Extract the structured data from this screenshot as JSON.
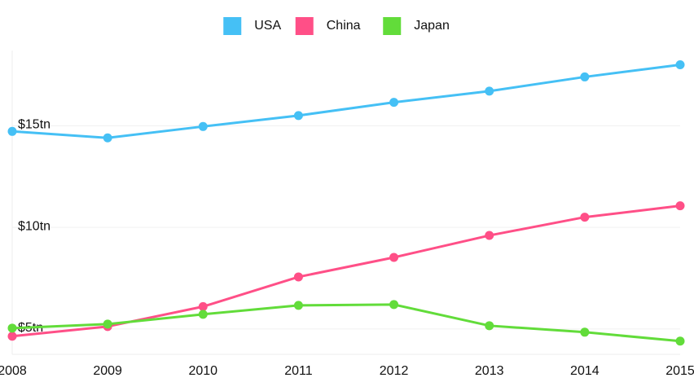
{
  "chart_data": {
    "type": "line",
    "x": [
      2008,
      2009,
      2010,
      2011,
      2012,
      2013,
      2014,
      2015
    ],
    "xlim": [
      2008,
      2015
    ],
    "xticks": [
      2008,
      2009,
      2010,
      2011,
      2012,
      2013,
      2014,
      2015
    ],
    "ylim": [
      3.75,
      18.7
    ],
    "yticks": [
      {
        "value": 5,
        "label": "$5tn"
      },
      {
        "value": 10,
        "label": "$10tn"
      },
      {
        "value": 15,
        "label": "$15tn"
      }
    ],
    "grid": true,
    "legend": "top",
    "series": [
      {
        "name": "USA",
        "color": "#45c0f5",
        "values": [
          14.72,
          14.4,
          14.96,
          15.5,
          16.15,
          16.7,
          17.4,
          18.0
        ]
      },
      {
        "name": "China",
        "color": "#ff4f87",
        "values": [
          4.64,
          5.12,
          6.1,
          7.56,
          8.52,
          9.6,
          10.5,
          11.06
        ]
      },
      {
        "name": "Japan",
        "color": "#62dc3a",
        "values": [
          5.04,
          5.24,
          5.72,
          6.16,
          6.2,
          5.16,
          4.84,
          4.4
        ]
      }
    ]
  }
}
